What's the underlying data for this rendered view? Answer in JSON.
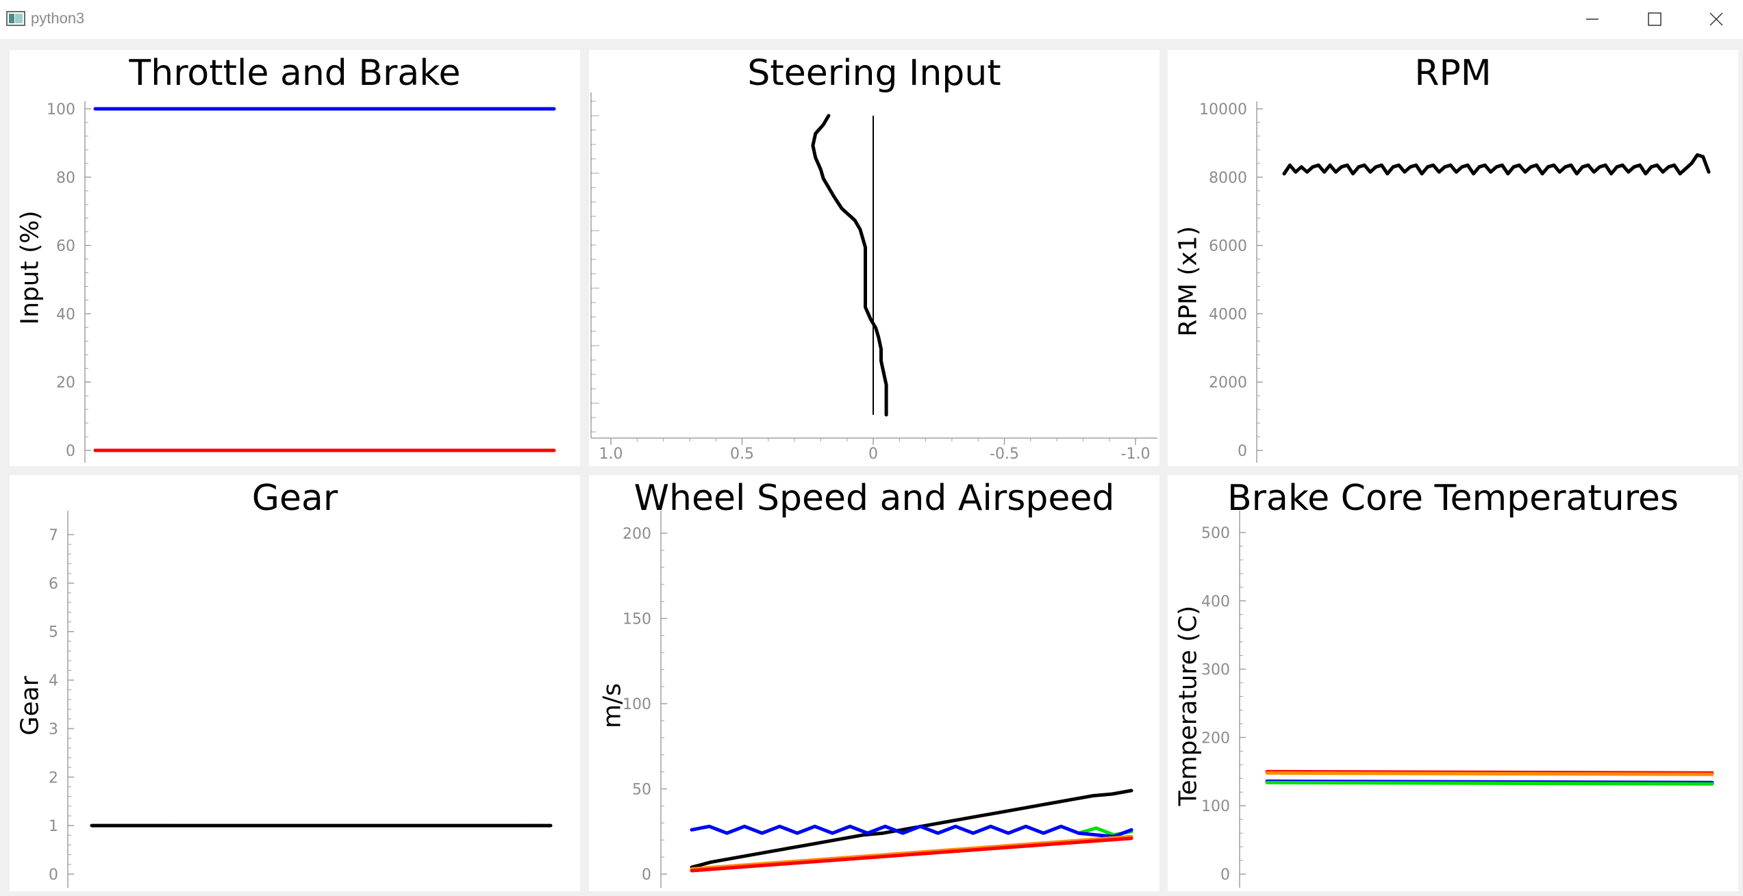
{
  "window": {
    "title": "python3"
  },
  "colors": {
    "throttle": "#0000ff",
    "brake": "#ff0000",
    "axis": "#a0a0a0",
    "line": "#000000",
    "orange": "#ff8c00",
    "green": "#00e000",
    "blue": "#0000ff",
    "red": "#ff0000"
  },
  "chart_data": [
    {
      "type": "line",
      "title": "Throttle and Brake",
      "ylabel": "Input (%)",
      "xlabel": "",
      "ylim": [
        0,
        100
      ],
      "yticks": [
        "0",
        "20",
        "40",
        "60",
        "80",
        "100"
      ],
      "series": [
        {
          "color": "blue",
          "values": [
            100,
            100
          ]
        },
        {
          "color": "red",
          "values": [
            0,
            0
          ]
        }
      ]
    },
    {
      "type": "line",
      "title": "Steering Input",
      "ylabel": "",
      "xlabel": "",
      "xlim": [
        1.0,
        -1.0
      ],
      "xticks": [
        "1.0",
        "0.5",
        "0",
        "-0.5",
        "-1.0"
      ],
      "series": [
        {
          "color": "black",
          "points": [
            [
              0.17,
              0.0
            ],
            [
              0.19,
              0.03
            ],
            [
              0.22,
              0.06
            ],
            [
              0.23,
              0.1
            ],
            [
              0.22,
              0.14
            ],
            [
              0.2,
              0.18
            ],
            [
              0.19,
              0.21
            ],
            [
              0.17,
              0.24
            ],
            [
              0.15,
              0.27
            ],
            [
              0.12,
              0.31
            ],
            [
              0.07,
              0.35
            ],
            [
              0.05,
              0.38
            ],
            [
              0.04,
              0.41
            ],
            [
              0.03,
              0.44
            ],
            [
              0.03,
              0.48
            ],
            [
              0.03,
              0.52
            ],
            [
              0.03,
              0.56
            ],
            [
              0.03,
              0.6
            ],
            [
              0.03,
              0.64
            ],
            [
              0.01,
              0.68
            ],
            [
              -0.01,
              0.71
            ],
            [
              -0.02,
              0.74
            ],
            [
              -0.03,
              0.78
            ],
            [
              -0.03,
              0.82
            ],
            [
              -0.04,
              0.86
            ],
            [
              -0.05,
              0.9
            ],
            [
              -0.05,
              0.95
            ],
            [
              -0.05,
              1.0
            ]
          ]
        }
      ]
    },
    {
      "type": "line",
      "title": "RPM",
      "ylabel": "RPM (x1)",
      "xlabel": "",
      "ylim": [
        0,
        10000
      ],
      "yticks": [
        "0",
        "2000",
        "4000",
        "6000",
        "8000",
        "10000"
      ],
      "series": [
        {
          "color": "black",
          "values": [
            8100,
            8350,
            8150,
            8300,
            8150,
            8300,
            8350,
            8150,
            8350,
            8150,
            8300,
            8350,
            8100,
            8300,
            8350,
            8150,
            8300,
            8350,
            8100,
            8300,
            8350,
            8150,
            8300,
            8350,
            8100,
            8300,
            8350,
            8150,
            8300,
            8350,
            8150,
            8300,
            8350,
            8100,
            8300,
            8350,
            8150,
            8300,
            8350,
            8100,
            8300,
            8350,
            8150,
            8300,
            8350,
            8100,
            8300,
            8350,
            8150,
            8300,
            8350,
            8100,
            8300,
            8350,
            8150,
            8300,
            8350,
            8100,
            8300,
            8350,
            8150,
            8300,
            8350,
            8100,
            8300,
            8350,
            8150,
            8300,
            8350,
            8100,
            8250,
            8400,
            8650,
            8600,
            8150
          ]
        }
      ]
    },
    {
      "type": "line",
      "title": "Gear",
      "ylabel": "Gear",
      "xlabel": "",
      "ylim": [
        0,
        7
      ],
      "yticks": [
        "0",
        "1",
        "2",
        "3",
        "4",
        "5",
        "6",
        "7"
      ],
      "series": [
        {
          "color": "black",
          "values": [
            1,
            1
          ]
        }
      ]
    },
    {
      "type": "line",
      "title": "Wheel Speed and Airspeed",
      "ylabel": "m/s",
      "xlabel": "",
      "ylim": [
        0,
        200
      ],
      "yticks": [
        "0",
        "50",
        "100",
        "150",
        "200"
      ],
      "series": [
        {
          "color": "black",
          "values": [
            4,
            7,
            9,
            11,
            13,
            15,
            17,
            19,
            21,
            23,
            24,
            26,
            28,
            30,
            32,
            34,
            36,
            38,
            40,
            42,
            44,
            46,
            47,
            49
          ]
        },
        {
          "color": "green",
          "values": [
            26,
            28,
            24,
            28,
            24,
            28,
            24,
            28,
            24,
            28,
            24,
            28,
            24,
            28,
            24,
            28,
            24,
            28,
            24,
            28,
            24,
            28,
            24,
            27,
            23,
            25
          ]
        },
        {
          "color": "blue",
          "values": [
            26,
            28,
            24,
            28,
            24,
            28,
            24,
            28,
            24,
            28,
            24,
            28,
            24,
            28,
            24,
            28,
            24,
            28,
            24,
            28,
            24,
            28,
            24,
            23,
            22,
            26
          ]
        },
        {
          "color": "orange",
          "values": [
            3,
            22
          ]
        },
        {
          "color": "red",
          "values": [
            2,
            21
          ]
        }
      ]
    },
    {
      "type": "line",
      "title": "Brake Core Temperatures",
      "ylabel": "Temperature (C)",
      "xlabel": "",
      "ylim": [
        0,
        500
      ],
      "yticks": [
        "0",
        "100",
        "200",
        "300",
        "400",
        "500"
      ],
      "series": [
        {
          "color": "red",
          "values": [
            150,
            148
          ]
        },
        {
          "color": "orange",
          "values": [
            148,
            146
          ]
        },
        {
          "color": "blue",
          "values": [
            136,
            134
          ]
        },
        {
          "color": "green",
          "values": [
            134,
            132
          ]
        }
      ]
    }
  ]
}
